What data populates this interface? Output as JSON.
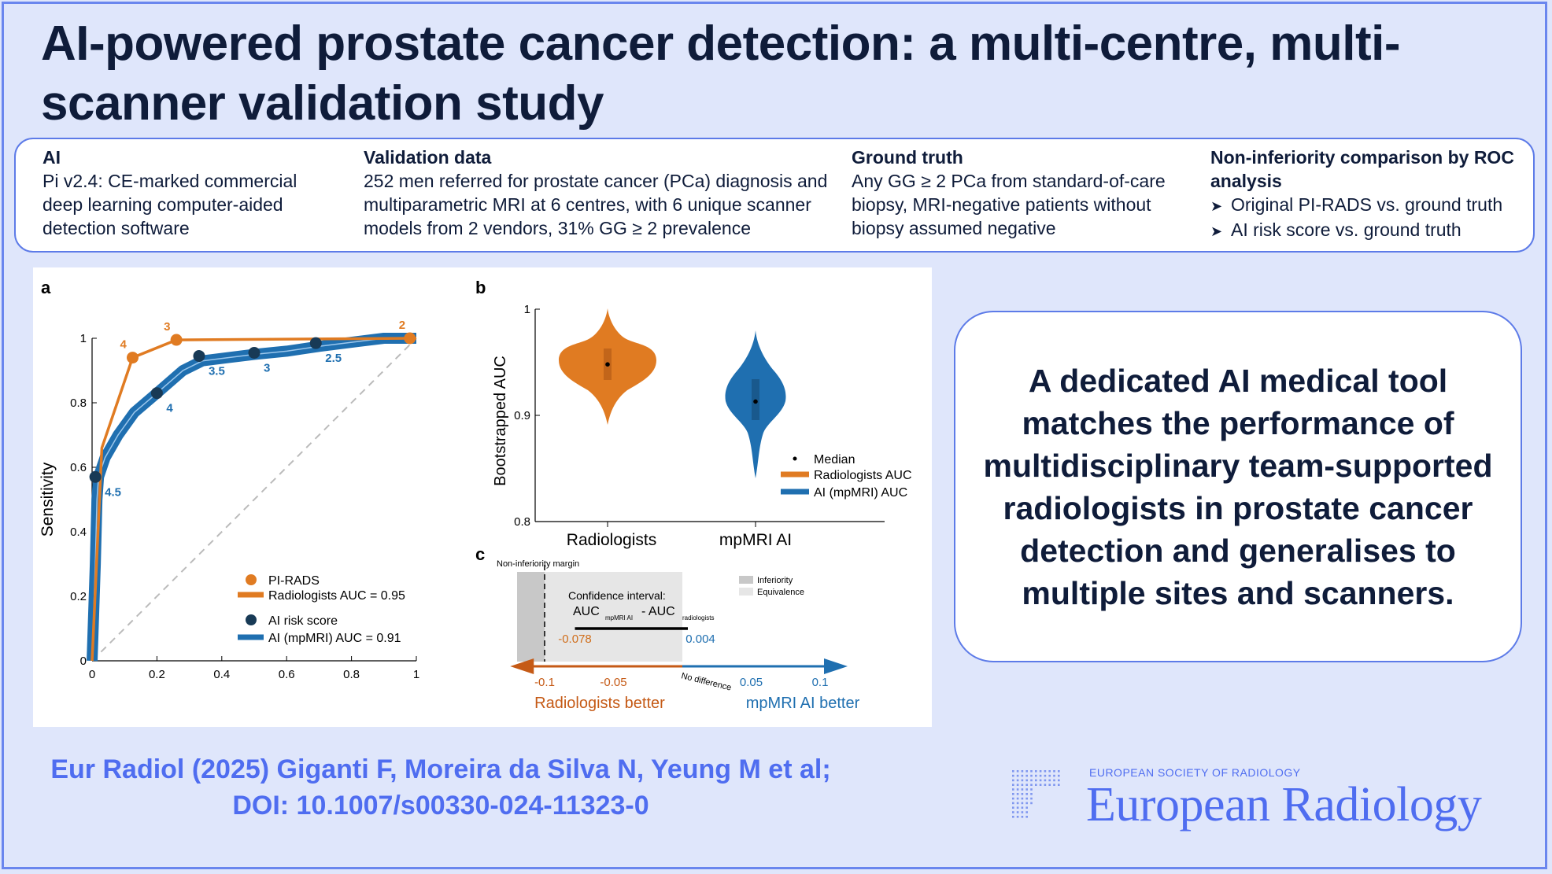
{
  "title": "AI-powered prostate cancer detection: a multi-centre, multi-scanner validation study",
  "info": {
    "ai": {
      "heading": "AI",
      "text": "Pi v2.4: CE-marked commercial deep learning computer-aided detection software"
    },
    "validation": {
      "heading": "Validation data",
      "text": "252 men referred for prostate cancer (PCa) diagnosis and multiparametric MRI at 6 centres, with 6 unique scanner models from 2 vendors, 31% GG ≥ 2 prevalence"
    },
    "ground": {
      "heading": "Ground truth",
      "text": "Any GG ≥ 2 PCa  from standard-of-care biopsy, MRI-negative patients without biopsy assumed negative"
    },
    "noninf": {
      "heading": "Non-inferiority comparison by ROC analysis",
      "items": [
        "Original PI-RADS vs. ground truth",
        "AI risk score vs. ground truth"
      ]
    }
  },
  "colors": {
    "orange": "#e07b22",
    "blue": "#1f6fb0",
    "accent": "#4f6df0",
    "navy": "#0f1c3a"
  },
  "chart_data": [
    {
      "type": "line",
      "panel": "a",
      "xlabel": "",
      "ylabel": "Sensitivity",
      "xlim": [
        0,
        1
      ],
      "ylim": [
        0,
        1
      ],
      "xticks": [
        "0",
        "0.2",
        "0.4",
        "0.6",
        "0.8",
        "1"
      ],
      "yticks": [
        "0",
        "0.2",
        "0.4",
        "0.6",
        "0.8",
        "1"
      ],
      "legend": {
        "pirads_points": "PI-RADS",
        "pirads_line": "Radiologists AUC = 0.95",
        "ai_points": "AI risk score",
        "ai_line": "AI (mpMRI) AUC = 0.91"
      },
      "series": [
        {
          "name": "Radiologists AUC = 0.95",
          "x": [
            0,
            0.03,
            0.125,
            0.26,
            0.98,
            1
          ],
          "y": [
            0,
            0.66,
            0.94,
            0.995,
            1.0,
            1.0
          ]
        },
        {
          "name": "AI (mpMRI) AUC = 0.91",
          "x": [
            0,
            0.01,
            0.015,
            0.02,
            0.04,
            0.08,
            0.13,
            0.2,
            0.28,
            0.34,
            0.42,
            0.5,
            0.6,
            0.7,
            0.82,
            0.9,
            1
          ],
          "y": [
            0,
            0.3,
            0.5,
            0.57,
            0.63,
            0.7,
            0.77,
            0.83,
            0.9,
            0.93,
            0.94,
            0.95,
            0.96,
            0.975,
            0.99,
            1.0,
            1.0
          ]
        }
      ],
      "pirads_points": [
        {
          "x": 0.125,
          "y": 0.94,
          "label": "4"
        },
        {
          "x": 0.26,
          "y": 0.995,
          "label": "3"
        },
        {
          "x": 0.98,
          "y": 1.0,
          "label": "2"
        }
      ],
      "ai_points": [
        {
          "x": 0.01,
          "y": 0.57,
          "label": "4.5"
        },
        {
          "x": 0.2,
          "y": 0.83,
          "label": "4"
        },
        {
          "x": 0.33,
          "y": 0.945,
          "label": "3.5"
        },
        {
          "x": 0.5,
          "y": 0.955,
          "label": "3"
        },
        {
          "x": 0.69,
          "y": 0.985,
          "label": "2.5"
        }
      ]
    },
    {
      "type": "violin",
      "panel": "b",
      "ylabel": "Bootstrapped AUC",
      "ylim": [
        0.8,
        1
      ],
      "yticks": [
        "0.8",
        "0.9",
        "1"
      ],
      "categories": [
        "Radiologists",
        "mpMRI AI"
      ],
      "medians": [
        0.948,
        0.913
      ],
      "legend": [
        "Median",
        "Radiologists AUC",
        "AI (mpMRI) AUC"
      ]
    },
    {
      "type": "interval",
      "panel": "c",
      "xlim": [
        -0.125,
        0.12
      ],
      "xticks": [
        "-0.1",
        "-0.05",
        "0.05",
        "0.1"
      ],
      "margin_label": "Non-inferiority margin",
      "margin": -0.1,
      "ci_title": "Confidence interval:",
      "ci_auc": "AUC",
      "ci_sub1": "mpMRI AI",
      "ci_minus": "- AUC",
      "ci_sub2": "radiologists",
      "ci_low": -0.078,
      "ci_high": 0.004,
      "ci_low_label": "-0.078",
      "ci_high_label": "0.004",
      "no_difference": "No difference",
      "legend": [
        "Inferiority",
        "Equivalence"
      ],
      "left_label": "Radiologists better",
      "right_label": "mpMRI AI better"
    }
  ],
  "message": "A dedicated AI medical tool matches the performance of multidisciplinary team-supported radiologists in prostate cancer detection and generalises to multiple sites and scanners.",
  "citation": {
    "line1": "Eur Radiol (2025) Giganti F, Moreira da Silva N, Yeung M et al;",
    "line2": "DOI: 10.1007/s00330-024-11323-0"
  },
  "logo": {
    "small": "EUROPEAN SOCIETY OF RADIOLOGY",
    "big": "European Radiology"
  }
}
